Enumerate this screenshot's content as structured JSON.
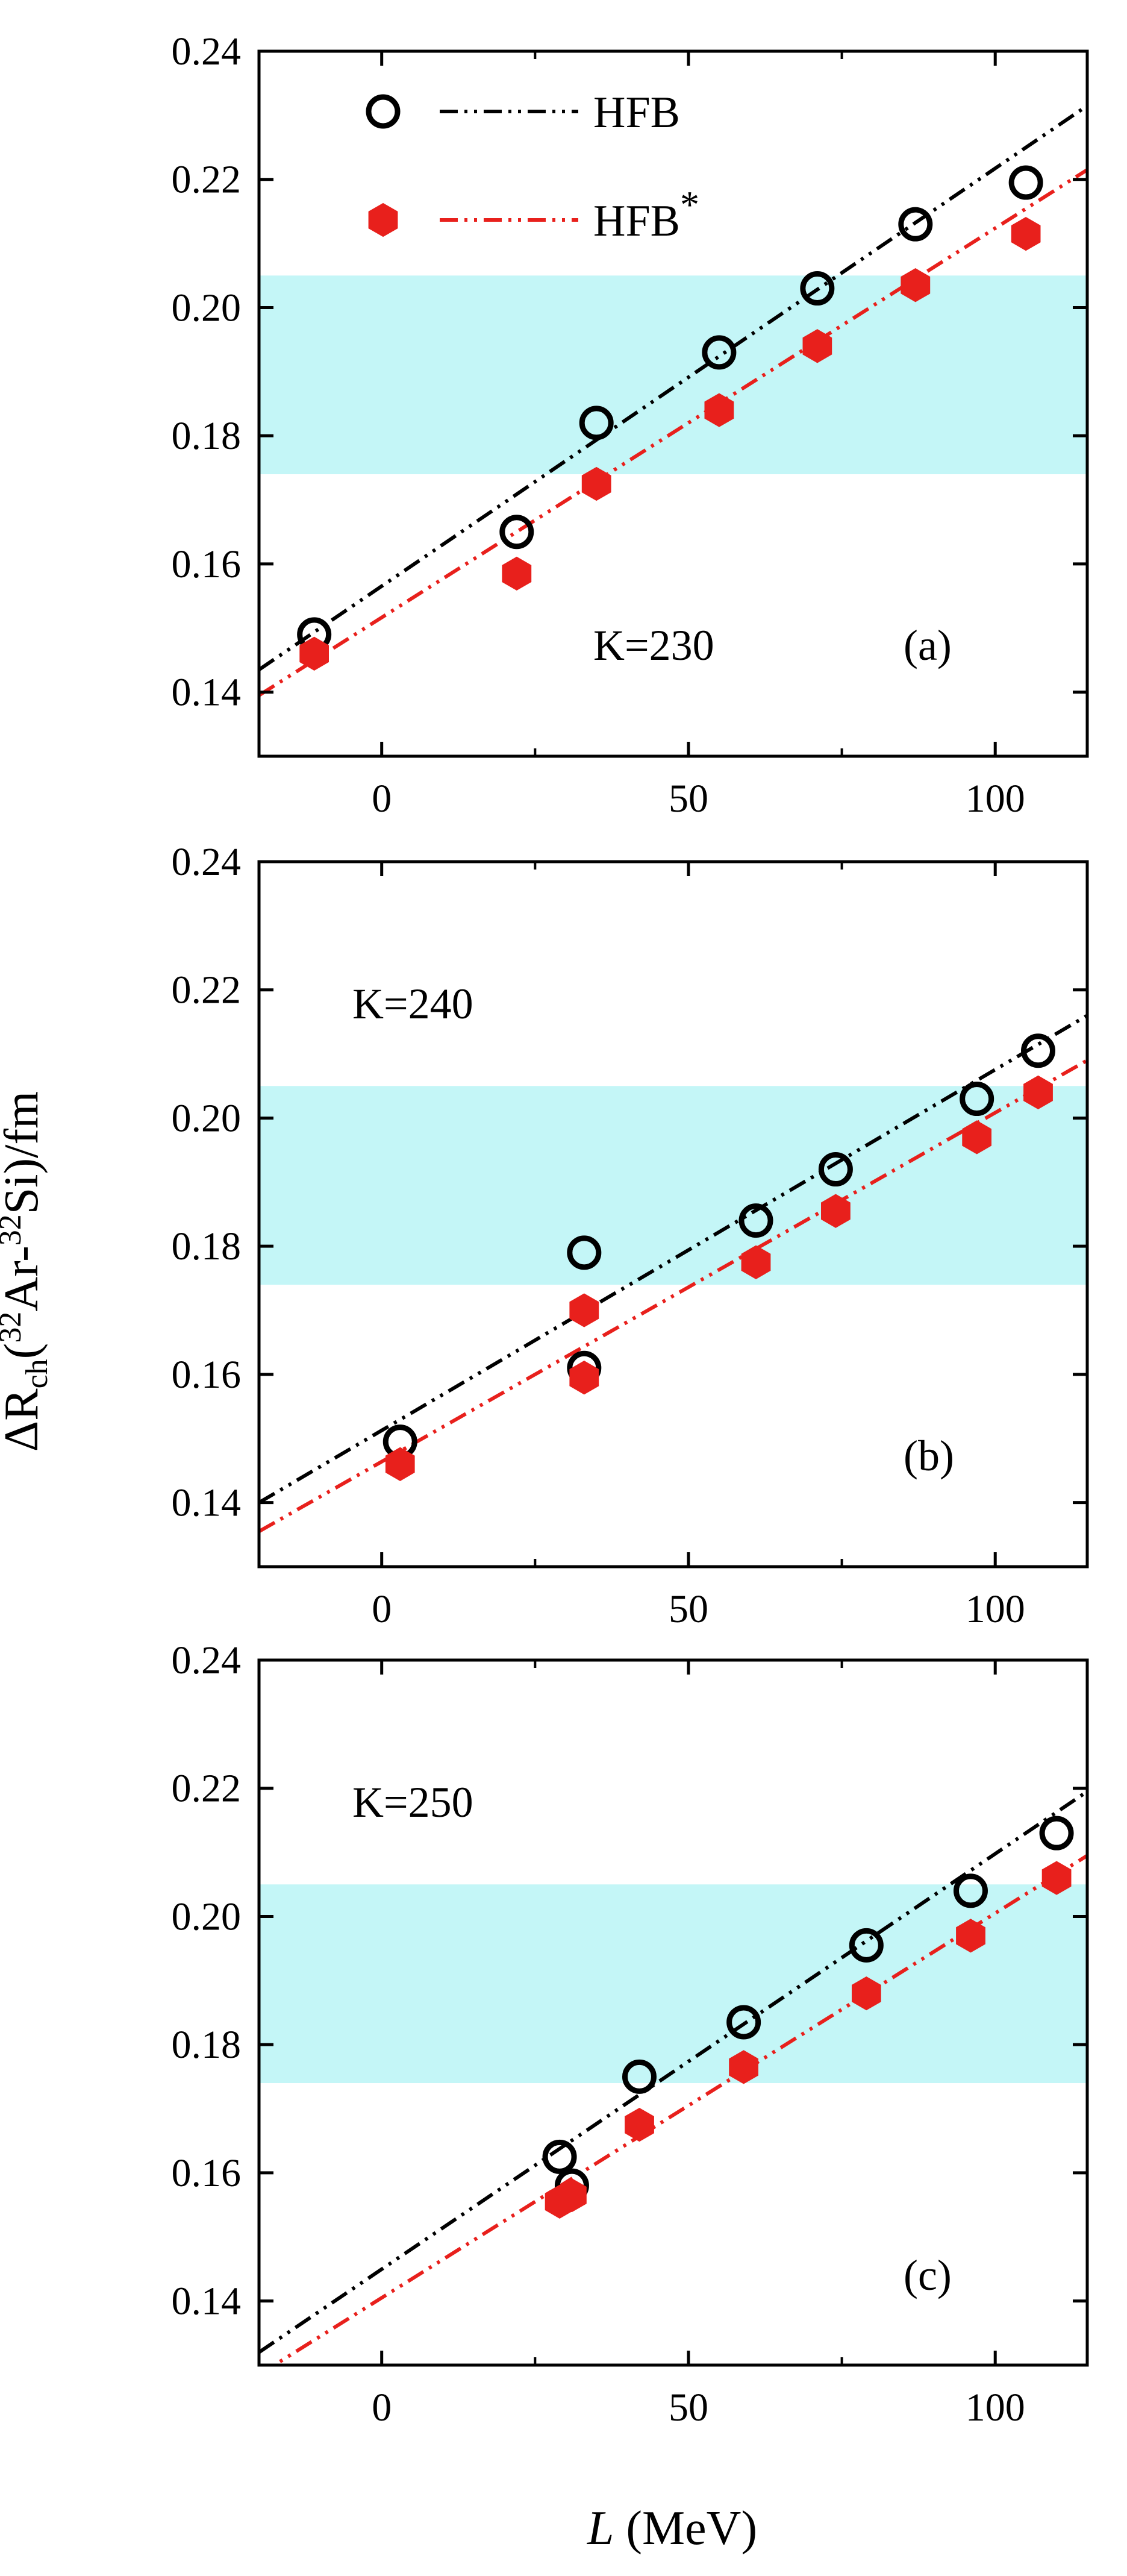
{
  "chart_data": {
    "type": "scatter",
    "xlabel": "L (MeV)",
    "xlabel_parts": {
      "symbol": "L",
      "unit": " (MeV)"
    },
    "ylabel": "ΔRch(32Ar-32Si)/fm",
    "ylabel_parts": {
      "delta": "ΔR",
      "sub": "ch",
      "open": "(",
      "sup1": "32",
      "mid": "Ar-",
      "sup2": "32",
      "end": "Si)/fm"
    },
    "xlim": [
      -20,
      115
    ],
    "ylim": [
      0.13,
      0.24
    ],
    "x_ticks": [
      0,
      50,
      100
    ],
    "x_tick_labels": [
      "0",
      "50",
      "100"
    ],
    "y_ticks": [
      0.14,
      0.16,
      0.18,
      0.2,
      0.22,
      0.24
    ],
    "y_tick_labels": [
      "0.14",
      "0.16",
      "0.18",
      "0.20",
      "0.22",
      "0.24"
    ],
    "band": {
      "y_min": 0.174,
      "y_max": 0.205,
      "color": "#c4f6f7"
    },
    "legend": {
      "placement": "top-left",
      "entries": [
        {
          "label": "HFB",
          "label_sup": "",
          "marker": "open-circle",
          "color": "#000000"
        },
        {
          "label": "HFB",
          "label_sup": "*",
          "marker": "filled-hexagon",
          "color": "#e8201c"
        }
      ]
    },
    "panels": [
      {
        "id": "a",
        "annotation": "K=230",
        "tag": "(a)",
        "series": [
          {
            "legend_index": 0,
            "points": [
              [
                -11,
                0.149
              ],
              [
                22,
                0.165
              ],
              [
                35,
                0.182
              ],
              [
                55,
                0.193
              ],
              [
                71,
                0.203
              ],
              [
                87,
                0.213
              ],
              [
                105,
                0.2195
              ]
            ],
            "fit": {
              "x0": -20,
              "y0": 0.1435,
              "x1": 115,
              "y1": 0.2315
            }
          },
          {
            "legend_index": 1,
            "points": [
              [
                -11,
                0.146
              ],
              [
                22,
                0.1585
              ],
              [
                35,
                0.1725
              ],
              [
                55,
                0.184
              ],
              [
                71,
                0.194
              ],
              [
                87,
                0.2035
              ],
              [
                105,
                0.2115
              ]
            ],
            "fit": {
              "x0": -20,
              "y0": 0.1395,
              "x1": 115,
              "y1": 0.2215
            }
          }
        ]
      },
      {
        "id": "b",
        "annotation": "K=240",
        "tag": "(b)",
        "series": [
          {
            "legend_index": 0,
            "points": [
              [
                3,
                0.1495
              ],
              [
                33,
                0.179
              ],
              [
                33,
                0.161
              ],
              [
                61,
                0.184
              ],
              [
                74,
                0.192
              ],
              [
                97,
                0.203
              ],
              [
                107,
                0.2105
              ]
            ],
            "fit": {
              "x0": -20,
              "y0": 0.14,
              "x1": 115,
              "y1": 0.216
            }
          },
          {
            "legend_index": 1,
            "points": [
              [
                3,
                0.146
              ],
              [
                33,
                0.17
              ],
              [
                33,
                0.1595
              ],
              [
                61,
                0.1775
              ],
              [
                74,
                0.1855
              ],
              [
                97,
                0.197
              ],
              [
                107,
                0.204
              ]
            ],
            "fit": {
              "x0": -20,
              "y0": 0.1355,
              "x1": 115,
              "y1": 0.209
            }
          }
        ]
      },
      {
        "id": "c",
        "annotation": "K=250",
        "tag": "(c)",
        "series": [
          {
            "legend_index": 0,
            "points": [
              [
                29,
                0.1625
              ],
              [
                31,
                0.158
              ],
              [
                42,
                0.175
              ],
              [
                59,
                0.1835
              ],
              [
                79,
                0.1955
              ],
              [
                96,
                0.204
              ],
              [
                110,
                0.213
              ]
            ],
            "fit": {
              "x0": -20,
              "y0": 0.132,
              "x1": 115,
              "y1": 0.2195
            }
          },
          {
            "legend_index": 1,
            "points": [
              [
                29,
                0.1555
              ],
              [
                31,
                0.1565
              ],
              [
                42,
                0.1675
              ],
              [
                59,
                0.1765
              ],
              [
                79,
                0.188
              ],
              [
                96,
                0.197
              ],
              [
                110,
                0.206
              ]
            ],
            "fit": {
              "x0": -20,
              "y0": 0.1285,
              "x1": 115,
              "y1": 0.2095
            }
          }
        ]
      }
    ]
  }
}
